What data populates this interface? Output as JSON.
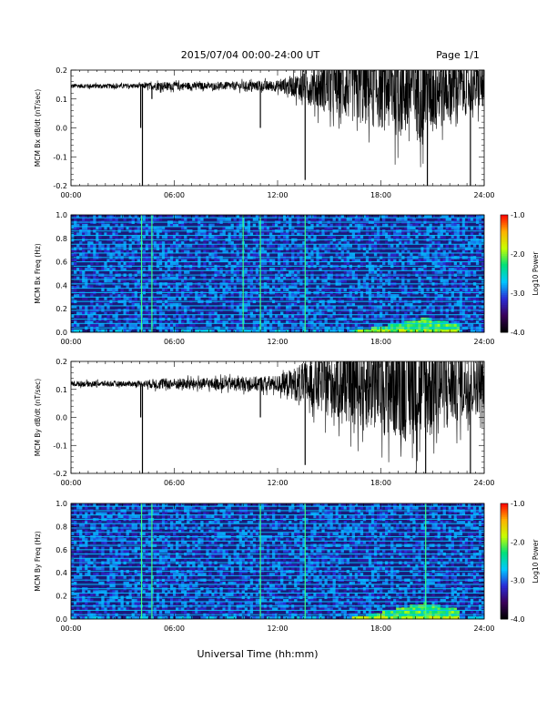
{
  "header": {
    "title": "2015/07/04  00:00-24:00 UT",
    "page": "Page 1/1"
  },
  "footer": {
    "xlabel": "Universal Time (hh:mm)"
  },
  "colors": {
    "trace": "#000000",
    "spectrogram_background": "#1a1a7a",
    "colormap": [
      "#000000",
      "#3a005a",
      "#2b2bd6",
      "#00c8ff",
      "#00e07a",
      "#c8ff00",
      "#ffb000",
      "#ff0000"
    ]
  },
  "chart_data": [
    {
      "type": "line",
      "panel": "Bx-timeseries",
      "ylabel": "MCM Bx dB/dt (nT/sec)",
      "xlim": [
        0,
        24
      ],
      "ylim": [
        -0.2,
        0.2
      ],
      "xticks": [
        "00:00",
        "06:00",
        "12:00",
        "18:00",
        "24:00"
      ],
      "yticks": [
        "-0.2",
        "-0.1",
        "0.0",
        "0.1",
        "0.2"
      ],
      "baseline": 0.145,
      "noise_envelope": [
        [
          0,
          0.008
        ],
        [
          4,
          0.008
        ],
        [
          5,
          0.015
        ],
        [
          8,
          0.012
        ],
        [
          12,
          0.02
        ],
        [
          13,
          0.04
        ],
        [
          14,
          0.07
        ],
        [
          15,
          0.1
        ],
        [
          16,
          0.12
        ],
        [
          17,
          0.14
        ],
        [
          18,
          0.15
        ],
        [
          19,
          0.18
        ],
        [
          20,
          0.2
        ],
        [
          21,
          0.18
        ],
        [
          22,
          0.12
        ],
        [
          24,
          0.08
        ]
      ],
      "spikes": [
        {
          "x": 4.05,
          "y": 0.0
        },
        {
          "x": 4.15,
          "y": -0.2
        },
        {
          "x": 4.7,
          "y": 0.1
        },
        {
          "x": 11.0,
          "y": 0.0
        },
        {
          "x": 13.6,
          "y": -0.18
        },
        {
          "x": 20.7,
          "y": -0.2
        },
        {
          "x": 23.2,
          "y": -0.2
        }
      ]
    },
    {
      "type": "heatmap",
      "panel": "Bx-spectrogram",
      "ylabel": "MCM Bx Freq (Hz)",
      "xlim": [
        0,
        24
      ],
      "ylim": [
        0.0,
        1.0
      ],
      "xticks": [
        "00:00",
        "06:00",
        "12:00",
        "18:00",
        "24:00"
      ],
      "yticks": [
        "0.0",
        "0.2",
        "0.4",
        "0.6",
        "0.8",
        "1.0"
      ],
      "colorbar": {
        "label": "Log10 Power",
        "range": [
          -4.0,
          -1.0
        ],
        "ticks": [
          "-1.0",
          "-2.0",
          "-3.0",
          "-4.0"
        ]
      },
      "harmonic_lines_hz": [
        0.0375,
        0.075,
        0.1125,
        0.15,
        0.1875,
        0.225,
        0.2625,
        0.3,
        0.3375,
        0.375,
        0.4125,
        0.45,
        0.4875,
        0.525,
        0.5625,
        0.6,
        0.6375,
        0.675,
        0.7125,
        0.75,
        0.7875,
        0.825,
        0.8625,
        0.9,
        0.9375,
        0.975
      ],
      "vertical_events": [
        4.1,
        4.7,
        10.0,
        11.0,
        13.6
      ],
      "high_power_region": {
        "x_start": 16.0,
        "x_end": 22.5,
        "peak_x": 20.6,
        "max_freq": 0.12
      }
    },
    {
      "type": "line",
      "panel": "By-timeseries",
      "ylabel": "MCM By dB/dt (nT/sec)",
      "xlim": [
        0,
        24
      ],
      "ylim": [
        -0.2,
        0.2
      ],
      "xticks": [
        "00:00",
        "06:00",
        "12:00",
        "18:00",
        "24:00"
      ],
      "yticks": [
        "-0.2",
        "-0.1",
        "0.0",
        "0.1",
        "0.2"
      ],
      "baseline": 0.12,
      "noise_envelope": [
        [
          0,
          0.01
        ],
        [
          4,
          0.01
        ],
        [
          5,
          0.02
        ],
        [
          8,
          0.02
        ],
        [
          12,
          0.03
        ],
        [
          13,
          0.06
        ],
        [
          14,
          0.09
        ],
        [
          15,
          0.12
        ],
        [
          16,
          0.14
        ],
        [
          17,
          0.16
        ],
        [
          18,
          0.18
        ],
        [
          19,
          0.2
        ],
        [
          20,
          0.22
        ],
        [
          21,
          0.2
        ],
        [
          22,
          0.15
        ],
        [
          24,
          0.1
        ]
      ],
      "spikes": [
        {
          "x": 4.05,
          "y": 0.0
        },
        {
          "x": 4.15,
          "y": -0.2
        },
        {
          "x": 11.0,
          "y": 0.0
        },
        {
          "x": 13.6,
          "y": -0.17
        },
        {
          "x": 20.6,
          "y": -0.2
        },
        {
          "x": 23.2,
          "y": -0.2
        }
      ]
    },
    {
      "type": "heatmap",
      "panel": "By-spectrogram",
      "ylabel": "MCM By Freq (Hz)",
      "xlim": [
        0,
        24
      ],
      "ylim": [
        0.0,
        1.0
      ],
      "xticks": [
        "00:00",
        "06:00",
        "12:00",
        "18:00",
        "24:00"
      ],
      "yticks": [
        "0.0",
        "0.2",
        "0.4",
        "0.6",
        "0.8",
        "1.0"
      ],
      "colorbar": {
        "label": "Log10 Power",
        "range": [
          -4.0,
          -1.0
        ],
        "ticks": [
          "-1.0",
          "-2.0",
          "-3.0",
          "-4.0"
        ]
      },
      "harmonic_lines_hz": [
        0.0375,
        0.075,
        0.1125,
        0.15,
        0.1875,
        0.225,
        0.2625,
        0.3,
        0.3375,
        0.375,
        0.4125,
        0.45,
        0.4875,
        0.525,
        0.5625,
        0.6,
        0.6375,
        0.675,
        0.7125,
        0.75,
        0.7875,
        0.825,
        0.8625,
        0.9,
        0.9375,
        0.975
      ],
      "vertical_events": [
        4.1,
        4.7,
        11.0,
        13.6,
        20.6
      ],
      "high_power_region": {
        "x_start": 16.0,
        "x_end": 22.5,
        "peak_x": 20.6,
        "max_freq": 0.14
      }
    }
  ]
}
